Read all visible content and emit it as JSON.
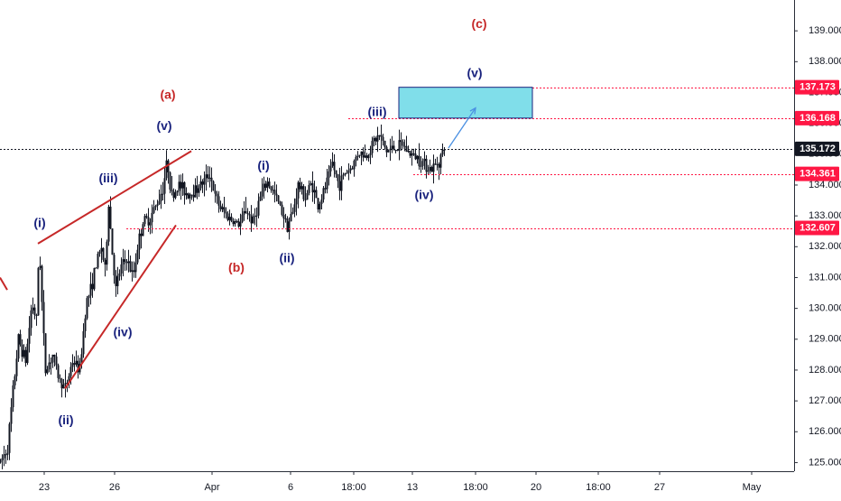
{
  "chart_data": {
    "type": "candlestick",
    "title": "",
    "xlabel": "",
    "ylabel": "",
    "ylim": [
      124.72,
      140.0
    ],
    "y_ticks": [
      125,
      126,
      127,
      128,
      129,
      130,
      131,
      132,
      133,
      134,
      135,
      136,
      137,
      138,
      139
    ],
    "y_tick_labels": [
      "125.000",
      "126.000",
      "127.000",
      "128.000",
      "129.000",
      "130.000",
      "131.000",
      "132.000",
      "133.000",
      "134.000",
      "135.000",
      "136.000",
      "137.000",
      "138.000",
      "139.000"
    ],
    "x_range_bars": [
      0,
      880
    ],
    "x_ticks": [
      {
        "label": "23",
        "bar": 49
      },
      {
        "label": "26",
        "bar": 127
      },
      {
        "label": "Apr",
        "bar": 235
      },
      {
        "label": "6",
        "bar": 322
      },
      {
        "label": "18:00",
        "bar": 392
      },
      {
        "label": "13",
        "bar": 457
      },
      {
        "label": "18:00",
        "bar": 527
      },
      {
        "label": "20",
        "bar": 594
      },
      {
        "label": "18:00",
        "bar": 663
      },
      {
        "label": "27",
        "bar": 731
      },
      {
        "label": "May",
        "bar": 833
      }
    ],
    "price_path": [
      [
        0,
        125.0
      ],
      [
        8,
        125.5
      ],
      [
        15,
        127.6
      ],
      [
        20,
        129.0
      ],
      [
        28,
        128.3
      ],
      [
        35,
        130.2
      ],
      [
        40,
        129.6
      ],
      [
        43,
        132.2
      ],
      [
        47,
        129.5
      ],
      [
        50,
        128.0
      ],
      [
        58,
        128.5
      ],
      [
        65,
        127.7
      ],
      [
        72,
        127.4
      ],
      [
        80,
        128.3
      ],
      [
        88,
        128.0
      ],
      [
        95,
        130.2
      ],
      [
        100,
        130.6
      ],
      [
        106,
        131.4
      ],
      [
        112,
        132.0
      ],
      [
        116,
        131.2
      ],
      [
        120,
        133.4
      ],
      [
        124,
        131.8
      ],
      [
        128,
        130.6
      ],
      [
        133,
        131.3
      ],
      [
        140,
        131.6
      ],
      [
        147,
        131.0
      ],
      [
        152,
        132.0
      ],
      [
        158,
        132.8
      ],
      [
        165,
        132.9
      ],
      [
        172,
        133.3
      ],
      [
        180,
        133.9
      ],
      [
        185,
        134.8
      ],
      [
        190,
        133.6
      ],
      [
        198,
        134.0
      ],
      [
        208,
        133.7
      ],
      [
        218,
        133.9
      ],
      [
        228,
        134.2
      ],
      [
        232,
        134.4
      ],
      [
        238,
        133.6
      ],
      [
        245,
        133.2
      ],
      [
        255,
        132.9
      ],
      [
        265,
        132.7
      ],
      [
        272,
        133.2
      ],
      [
        280,
        132.8
      ],
      [
        288,
        133.6
      ],
      [
        296,
        134.1
      ],
      [
        302,
        133.8
      ],
      [
        310,
        133.3
      ],
      [
        318,
        132.7
      ],
      [
        324,
        133.1
      ],
      [
        330,
        134.0
      ],
      [
        338,
        133.6
      ],
      [
        345,
        134.1
      ],
      [
        352,
        133.3
      ],
      [
        360,
        133.9
      ],
      [
        368,
        134.7
      ],
      [
        375,
        134.0
      ],
      [
        382,
        134.4
      ],
      [
        390,
        134.6
      ],
      [
        397,
        135.1
      ],
      [
        405,
        134.9
      ],
      [
        413,
        135.4
      ],
      [
        420,
        135.6
      ],
      [
        428,
        135.1
      ],
      [
        436,
        135.2
      ],
      [
        446,
        135.3
      ],
      [
        454,
        135.0
      ],
      [
        462,
        134.9
      ],
      [
        470,
        134.7
      ],
      [
        478,
        134.5
      ],
      [
        486,
        134.8
      ],
      [
        492,
        135.2
      ]
    ],
    "levels": [
      {
        "label": "137.173",
        "value": 137.173,
        "color": "#ff1744",
        "style": "dotted"
      },
      {
        "label": "136.168",
        "value": 136.168,
        "color": "#ff1744",
        "style": "dotted"
      },
      {
        "label": "135.172",
        "value": 135.172,
        "color": "#131722",
        "style": "dotted"
      },
      {
        "label": "134.361",
        "value": 134.361,
        "color": "#ff1744",
        "style": "dotted"
      },
      {
        "label": "132.607",
        "value": 132.607,
        "color": "#ff1744",
        "style": "dotted"
      }
    ],
    "target_zone": {
      "bar_start": 442,
      "bar_end": 590,
      "price_low": 136.17,
      "price_high": 137.17,
      "color": "#80deea"
    },
    "projection_arrow": {
      "from": {
        "bar": 497,
        "price": 135.2
      },
      "to": {
        "bar": 527,
        "price": 136.5
      },
      "color": "#4a90e2"
    },
    "trend_lines": [
      {
        "from": {
          "bar": 42,
          "price": 132.1
        },
        "to": {
          "bar": 212,
          "price": 135.1
        },
        "color": "#c62828"
      },
      {
        "from": {
          "bar": 72,
          "price": 127.4
        },
        "to": {
          "bar": 195,
          "price": 132.7
        },
        "color": "#c62828"
      },
      {
        "from": {
          "bar": 0,
          "price": 131.0
        },
        "to": {
          "bar": 8,
          "price": 130.6
        },
        "color": "#c62828"
      }
    ],
    "wave_labels": [
      {
        "text": "(i)",
        "bar": 44,
        "price": 132.75,
        "color": "#1a237e"
      },
      {
        "text": "(ii)",
        "bar": 73,
        "price": 126.35,
        "color": "#1a237e"
      },
      {
        "text": "(iii)",
        "bar": 120,
        "price": 134.2,
        "color": "#1a237e"
      },
      {
        "text": "(iv)",
        "bar": 136,
        "price": 129.2,
        "color": "#1a237e"
      },
      {
        "text": "(v)",
        "bar": 182,
        "price": 135.9,
        "color": "#1a237e"
      },
      {
        "text": "(a)",
        "bar": 186,
        "price": 136.9,
        "color": "#c62828"
      },
      {
        "text": "(b)",
        "bar": 262,
        "price": 131.3,
        "color": "#c62828"
      },
      {
        "text": "(i)",
        "bar": 292,
        "price": 134.6,
        "color": "#1a237e"
      },
      {
        "text": "(ii)",
        "bar": 318,
        "price": 131.6,
        "color": "#1a237e"
      },
      {
        "text": "(iii)",
        "bar": 418,
        "price": 136.35,
        "color": "#1a237e"
      },
      {
        "text": "(iv)",
        "bar": 470,
        "price": 133.65,
        "color": "#1a237e"
      },
      {
        "text": "(v)",
        "bar": 526,
        "price": 137.6,
        "color": "#1a237e"
      },
      {
        "text": "(c)",
        "bar": 531,
        "price": 139.2,
        "color": "#c62828"
      }
    ],
    "grid": false
  }
}
